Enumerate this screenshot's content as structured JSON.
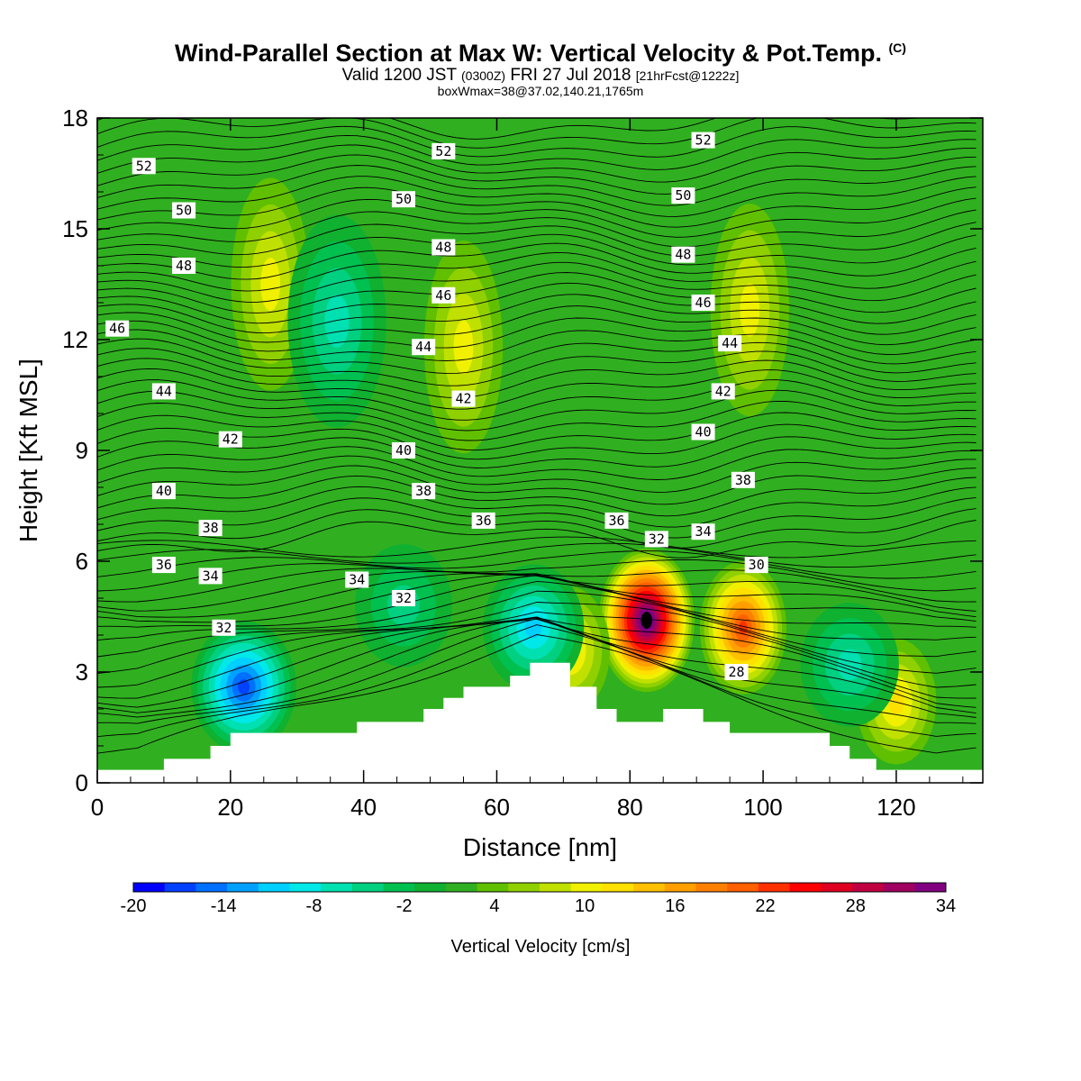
{
  "title": {
    "main": "Wind-Parallel Section at Max W: Vertical Velocity & Pot.Temp.",
    "copyright": "(C)",
    "valid_prefix": "Valid 1200 JST",
    "valid_z": "(0300Z)",
    "valid_date": "FRI 27 Jul 2018",
    "valid_fcst": "[21hrFcst@1222z]",
    "box": "boxWmax=38@37.02,140.21,1765m"
  },
  "chart_data": {
    "type": "heatmap",
    "xlabel": "Distance [nm]",
    "ylabel": "Height [Kft MSL]",
    "xlim": [
      0,
      133
    ],
    "ylim": [
      0,
      18
    ],
    "xticks": [
      0,
      20,
      40,
      60,
      80,
      100,
      120
    ],
    "yticks": [
      0,
      3,
      6,
      9,
      12,
      15,
      18
    ],
    "colorbar": {
      "label": "Vertical Velocity [cm/s]",
      "ticks": [
        -20,
        -14,
        -8,
        -2,
        4,
        10,
        16,
        22,
        28,
        34
      ],
      "levels": [
        -20,
        -18,
        -16,
        -14,
        -12,
        -10,
        -8,
        -6,
        -4,
        -2,
        0,
        2,
        4,
        6,
        8,
        10,
        12,
        14,
        16,
        18,
        20,
        22,
        24,
        26,
        28,
        30,
        32,
        34
      ],
      "colors": [
        "#0000ff",
        "#0040ff",
        "#0070ff",
        "#00a0ff",
        "#00d0ff",
        "#00e8e8",
        "#00e0b0",
        "#00d080",
        "#00c050",
        "#10b030",
        "#30b020",
        "#60c000",
        "#90d000",
        "#c0e000",
        "#f0f000",
        "#ffe000",
        "#ffc000",
        "#ffa000",
        "#ff8000",
        "#ff6000",
        "#ff3000",
        "#ff0000",
        "#e00020",
        "#c00040",
        "#a00060",
        "#800080"
      ]
    },
    "terrain_profile": [
      [
        0,
        0.35
      ],
      [
        10,
        0.35
      ],
      [
        10,
        0.65
      ],
      [
        17,
        0.65
      ],
      [
        17,
        1.0
      ],
      [
        20,
        1.0
      ],
      [
        20,
        1.35
      ],
      [
        39,
        1.35
      ],
      [
        39,
        1.65
      ],
      [
        49,
        1.65
      ],
      [
        49,
        2.0
      ],
      [
        52,
        2.0
      ],
      [
        52,
        2.3
      ],
      [
        55,
        2.3
      ],
      [
        55,
        2.6
      ],
      [
        62,
        2.6
      ],
      [
        62,
        2.9
      ],
      [
        65,
        2.9
      ],
      [
        65,
        3.25
      ],
      [
        71,
        3.25
      ],
      [
        71,
        2.6
      ],
      [
        75,
        2.6
      ],
      [
        75,
        2.0
      ],
      [
        78,
        2.0
      ],
      [
        78,
        1.65
      ],
      [
        85,
        1.65
      ],
      [
        85,
        2.0
      ],
      [
        91,
        2.0
      ],
      [
        91,
        1.65
      ],
      [
        95,
        1.65
      ],
      [
        95,
        1.35
      ],
      [
        110,
        1.35
      ],
      [
        110,
        1.0
      ],
      [
        113,
        1.0
      ],
      [
        113,
        0.65
      ],
      [
        117,
        0.65
      ],
      [
        117,
        0.35
      ],
      [
        133,
        0.35
      ]
    ],
    "updraft_cores": [
      {
        "x": 82.5,
        "y": 4.4,
        "max": 34
      },
      {
        "x": 97,
        "y": 4.2,
        "max": 20
      },
      {
        "x": 26,
        "y": 13.5,
        "max": 8
      },
      {
        "x": 55,
        "y": 11.8,
        "max": 8
      },
      {
        "x": 98,
        "y": 12.8,
        "max": 8
      },
      {
        "x": 120,
        "y": 2.2,
        "max": 10
      },
      {
        "x": 71,
        "y": 3.6,
        "max": 10
      }
    ],
    "downdraft_cores": [
      {
        "x": 22,
        "y": 2.6,
        "max": -18
      },
      {
        "x": 36,
        "y": 12.5,
        "max": -8
      },
      {
        "x": 65.5,
        "y": 4.2,
        "max": -12
      },
      {
        "x": 46,
        "y": 4.8,
        "max": -6
      },
      {
        "x": 113,
        "y": 3.2,
        "max": -8
      }
    ],
    "theta_labels": [
      {
        "text": "52",
        "x": 7,
        "y": 16.7
      },
      {
        "text": "50",
        "x": 13,
        "y": 15.5
      },
      {
        "text": "48",
        "x": 13,
        "y": 14.0
      },
      {
        "text": "46",
        "x": 3,
        "y": 12.3
      },
      {
        "text": "44",
        "x": 10,
        "y": 10.6
      },
      {
        "text": "42",
        "x": 20,
        "y": 9.3
      },
      {
        "text": "40",
        "x": 10,
        "y": 7.9
      },
      {
        "text": "38",
        "x": 17,
        "y": 6.9
      },
      {
        "text": "36",
        "x": 10,
        "y": 5.9
      },
      {
        "text": "34",
        "x": 17,
        "y": 5.6
      },
      {
        "text": "32",
        "x": 19,
        "y": 4.2
      },
      {
        "text": "52",
        "x": 52,
        "y": 17.1
      },
      {
        "text": "50",
        "x": 46,
        "y": 15.8
      },
      {
        "text": "48",
        "x": 52,
        "y": 14.5
      },
      {
        "text": "46",
        "x": 52,
        "y": 13.2
      },
      {
        "text": "44",
        "x": 49,
        "y": 11.8
      },
      {
        "text": "42",
        "x": 55,
        "y": 10.4
      },
      {
        "text": "40",
        "x": 46,
        "y": 9.0
      },
      {
        "text": "38",
        "x": 49,
        "y": 7.9
      },
      {
        "text": "36",
        "x": 58,
        "y": 7.1
      },
      {
        "text": "34",
        "x": 39,
        "y": 5.5
      },
      {
        "text": "32",
        "x": 46,
        "y": 5.0
      },
      {
        "text": "52",
        "x": 91,
        "y": 17.4
      },
      {
        "text": "50",
        "x": 88,
        "y": 15.9
      },
      {
        "text": "48",
        "x": 88,
        "y": 14.3
      },
      {
        "text": "46",
        "x": 91,
        "y": 13.0
      },
      {
        "text": "44",
        "x": 95,
        "y": 11.9
      },
      {
        "text": "42",
        "x": 94,
        "y": 10.6
      },
      {
        "text": "40",
        "x": 91,
        "y": 9.5
      },
      {
        "text": "38",
        "x": 97,
        "y": 8.2
      },
      {
        "text": "36",
        "x": 78,
        "y": 7.1
      },
      {
        "text": "32",
        "x": 84,
        "y": 6.6
      },
      {
        "text": "34",
        "x": 91,
        "y": 6.8
      },
      {
        "text": "30",
        "x": 99,
        "y": 5.9
      },
      {
        "text": "28",
        "x": 96,
        "y": 3.0
      }
    ]
  }
}
